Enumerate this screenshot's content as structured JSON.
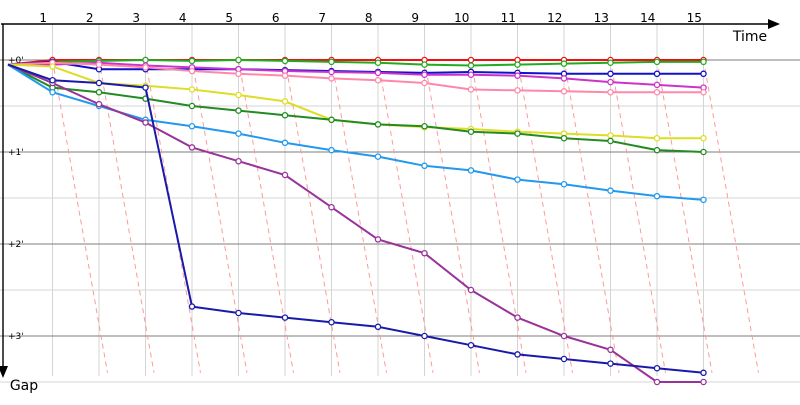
{
  "chart_data": {
    "type": "line",
    "title": "",
    "xlabel": "Time",
    "ylabel": "Gap",
    "lap_labels": [
      "1",
      "2",
      "3",
      "4",
      "5",
      "6",
      "7",
      "8",
      "9",
      "10",
      "11",
      "12",
      "13",
      "14",
      "15"
    ],
    "gap_ticks": [
      "+0'",
      "+1'",
      "+2'",
      "+3'"
    ],
    "ylim": [
      0,
      3.4
    ],
    "series": [
      {
        "color": "#ee1111",
        "values": [
          0.0,
          0.0,
          0.0,
          0.0,
          0.0,
          0.0,
          0.0,
          0.0,
          0.0,
          0.0,
          0.0,
          0.0,
          0.0,
          0.0,
          0.0
        ]
      },
      {
        "color": "#22aa22",
        "values": [
          0.02,
          0.01,
          0.0,
          0.01,
          0.0,
          0.01,
          0.02,
          0.03,
          0.05,
          0.06,
          0.05,
          0.04,
          0.03,
          0.02,
          0.02
        ]
      },
      {
        "color": "#1111cc",
        "values": [
          0.02,
          0.1,
          0.1,
          0.1,
          0.1,
          0.11,
          0.12,
          0.13,
          0.14,
          0.13,
          0.14,
          0.15,
          0.15,
          0.15,
          0.15
        ]
      },
      {
        "color": "#cc33cc",
        "values": [
          0.05,
          0.03,
          0.06,
          0.08,
          0.1,
          0.12,
          0.13,
          0.14,
          0.16,
          0.16,
          0.17,
          0.2,
          0.24,
          0.27,
          0.3
        ]
      },
      {
        "color": "#ff88aa",
        "values": [
          0.03,
          0.05,
          0.08,
          0.12,
          0.15,
          0.17,
          0.2,
          0.22,
          0.25,
          0.32,
          0.33,
          0.34,
          0.35,
          0.35,
          0.35
        ]
      },
      {
        "color": "#dddd22",
        "values": [
          0.07,
          0.25,
          0.28,
          0.32,
          0.38,
          0.45,
          0.65,
          0.7,
          0.73,
          0.75,
          0.78,
          0.8,
          0.82,
          0.85,
          0.85
        ]
      },
      {
        "color": "#228b22",
        "values": [
          0.3,
          0.35,
          0.42,
          0.5,
          0.55,
          0.6,
          0.65,
          0.7,
          0.72,
          0.78,
          0.8,
          0.85,
          0.88,
          0.98,
          1.0
        ]
      },
      {
        "color": "#2299ee",
        "values": [
          0.35,
          0.5,
          0.65,
          0.72,
          0.8,
          0.9,
          0.98,
          1.05,
          1.15,
          1.2,
          1.3,
          1.35,
          1.42,
          1.48,
          1.52
        ]
      },
      {
        "color": "#993399",
        "values": [
          0.25,
          0.48,
          0.68,
          0.95,
          1.1,
          1.25,
          1.6,
          1.95,
          2.1,
          2.5,
          2.8,
          3.0,
          3.15,
          3.5,
          3.5
        ]
      },
      {
        "color": "#1a1aaa",
        "values": [
          0.22,
          0.25,
          0.3,
          2.68,
          2.75,
          2.8,
          2.85,
          2.9,
          3.0,
          3.1,
          3.2,
          3.25,
          3.3,
          3.35,
          3.4
        ]
      }
    ]
  }
}
